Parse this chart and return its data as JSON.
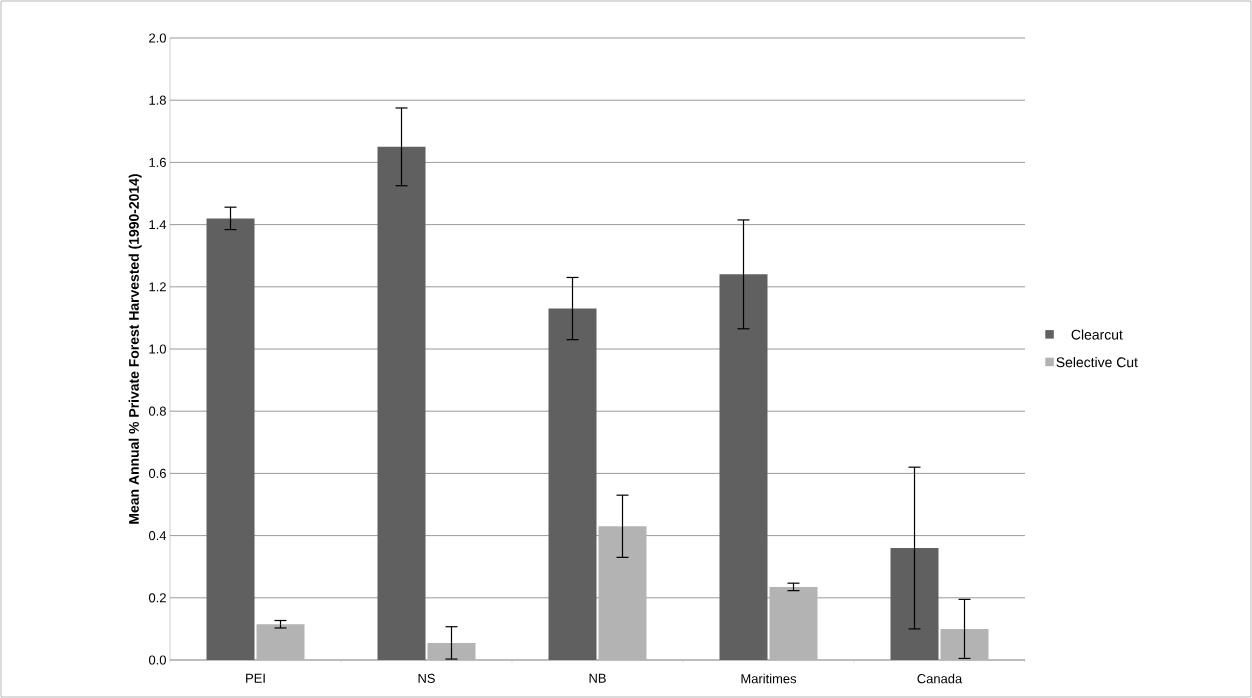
{
  "chart_data": {
    "type": "bar",
    "ylabel": "Mean Annual % Private Forest Harvested (1990-2014)",
    "categories": [
      "PEI",
      "NS",
      "NB",
      "Maritimes",
      "Canada"
    ],
    "series": [
      {
        "name": "Clearcut",
        "color": "#606060",
        "values": [
          1.42,
          1.65,
          1.13,
          1.24,
          0.36
        ],
        "errors": [
          0.036,
          0.125,
          0.1,
          0.175,
          0.26
        ]
      },
      {
        "name": "Selective Cut",
        "color": "#b3b3b3",
        "values": [
          0.115,
          0.055,
          0.43,
          0.235,
          0.1
        ],
        "errors": [
          0.012,
          0.052,
          0.1,
          0.012,
          0.095
        ]
      }
    ],
    "ylim": [
      0,
      2.0
    ],
    "yticks": [
      {
        "value": 0,
        "label": "0.0"
      },
      {
        "value": 0.2,
        "label": "0.2"
      },
      {
        "value": 0.4,
        "label": "0.4"
      },
      {
        "value": 0.6,
        "label": "0.6"
      },
      {
        "value": 0.8,
        "label": "0.8"
      },
      {
        "value": 1.0,
        "label": "1.0"
      },
      {
        "value": 1.2,
        "label": "1.2"
      },
      {
        "value": 1.4,
        "label": "1.4"
      },
      {
        "value": 1.6,
        "label": "1.6"
      },
      {
        "value": 1.8,
        "label": "1.8"
      },
      {
        "value": 2.0,
        "label": "2.0"
      }
    ],
    "grid": "y",
    "legend": "right"
  }
}
